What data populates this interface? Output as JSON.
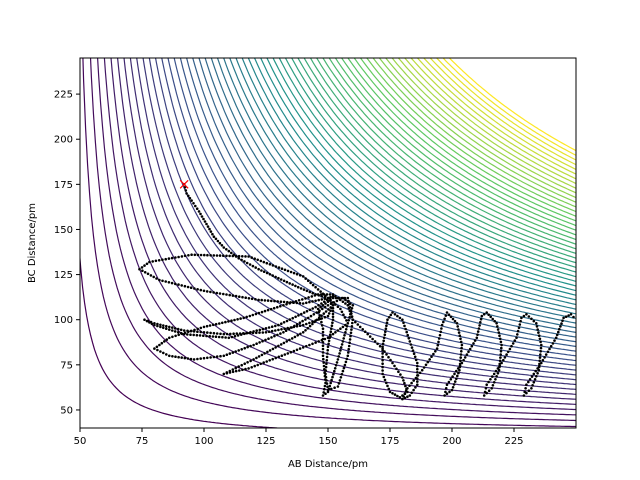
{
  "chart_data": {
    "type": "contour",
    "title": "",
    "xlabel": "AB Distance/pm",
    "ylabel": "BC Distance/pm",
    "xlim": [
      50,
      250
    ],
    "ylim": [
      40,
      245
    ],
    "xticks": [
      50,
      75,
      100,
      125,
      150,
      175,
      200,
      225
    ],
    "yticks": [
      50,
      75,
      100,
      125,
      150,
      175,
      200,
      225
    ],
    "grid": false,
    "colormap": [
      "#440154",
      "#3b528b",
      "#21918c",
      "#5ec962",
      "#fde725"
    ],
    "contour_levels": 60,
    "start_marker": {
      "x": 92,
      "y": 175,
      "symbol": "x",
      "color": "#ff0000"
    },
    "trajectory": {
      "color": "#000000",
      "points": [
        [
          92,
          175
        ],
        [
          93,
          170
        ],
        [
          95,
          166
        ],
        [
          98,
          160
        ],
        [
          101,
          153
        ],
        [
          104,
          146
        ],
        [
          108,
          140
        ],
        [
          114,
          134
        ],
        [
          122,
          128
        ],
        [
          130,
          123
        ],
        [
          138,
          118
        ],
        [
          145,
          114
        ],
        [
          150,
          112
        ],
        [
          152,
          108
        ],
        [
          150,
          102
        ],
        [
          140,
          97
        ],
        [
          125,
          93
        ],
        [
          108,
          92
        ],
        [
          92,
          94
        ],
        [
          80,
          98
        ],
        [
          76,
          100
        ],
        [
          80,
          97
        ],
        [
          92,
          92
        ],
        [
          110,
          90
        ],
        [
          130,
          97
        ],
        [
          145,
          107
        ],
        [
          152,
          113
        ],
        [
          150,
          112
        ],
        [
          140,
          109
        ],
        [
          122,
          111
        ],
        [
          100,
          116
        ],
        [
          82,
          122
        ],
        [
          74,
          128
        ],
        [
          78,
          132
        ],
        [
          95,
          136
        ],
        [
          118,
          135
        ],
        [
          140,
          124
        ],
        [
          150,
          112
        ],
        [
          155,
          106
        ],
        [
          158,
          98
        ],
        [
          150,
          90
        ],
        [
          135,
          82
        ],
        [
          118,
          73
        ],
        [
          108,
          70
        ],
        [
          120,
          78
        ],
        [
          140,
          93
        ],
        [
          152,
          108
        ],
        [
          152,
          100
        ],
        [
          150,
          85
        ],
        [
          149,
          70
        ],
        [
          150,
          61
        ],
        [
          154,
          63
        ],
        [
          158,
          80
        ],
        [
          160,
          100
        ],
        [
          158,
          112
        ],
        [
          152,
          112
        ],
        [
          146,
          106
        ],
        [
          148,
          95
        ],
        [
          148,
          80
        ],
        [
          149,
          65
        ],
        [
          148,
          58
        ],
        [
          150,
          60
        ],
        [
          154,
          78
        ],
        [
          158,
          98
        ],
        [
          160,
          108
        ],
        [
          156,
          112
        ],
        [
          150,
          108
        ],
        [
          142,
          101
        ],
        [
          132,
          93
        ],
        [
          120,
          86
        ],
        [
          108,
          80
        ],
        [
          96,
          78
        ],
        [
          86,
          80
        ],
        [
          80,
          84
        ],
        [
          86,
          90
        ],
        [
          100,
          96
        ],
        [
          116,
          101
        ],
        [
          132,
          108
        ],
        [
          146,
          114
        ],
        [
          152,
          114
        ],
        [
          158,
          108
        ],
        [
          160,
          100
        ],
        [
          166,
          92
        ],
        [
          172,
          84
        ],
        [
          176,
          76
        ],
        [
          180,
          68
        ],
        [
          182,
          60
        ],
        [
          179,
          57
        ],
        [
          175,
          60
        ],
        [
          172,
          70
        ],
        [
          172,
          85
        ],
        [
          174,
          100
        ],
        [
          176,
          104
        ],
        [
          180,
          100
        ],
        [
          183,
          88
        ],
        [
          186,
          76
        ],
        [
          186,
          64
        ],
        [
          183,
          58
        ],
        [
          180,
          56
        ],
        [
          182,
          62
        ],
        [
          188,
          72
        ],
        [
          194,
          84
        ],
        [
          196,
          97
        ],
        [
          198,
          104
        ],
        [
          202,
          98
        ],
        [
          204,
          86
        ],
        [
          203,
          72
        ],
        [
          200,
          61
        ],
        [
          197,
          58
        ],
        [
          198,
          64
        ],
        [
          204,
          76
        ],
        [
          210,
          90
        ],
        [
          212,
          102
        ],
        [
          214,
          104
        ],
        [
          218,
          98
        ],
        [
          220,
          86
        ],
        [
          219,
          72
        ],
        [
          216,
          62
        ],
        [
          213,
          58
        ],
        [
          214,
          64
        ],
        [
          220,
          76
        ],
        [
          226,
          90
        ],
        [
          228,
          101
        ],
        [
          230,
          103
        ],
        [
          234,
          98
        ],
        [
          236,
          86
        ],
        [
          235,
          72
        ],
        [
          232,
          62
        ],
        [
          229,
          58
        ],
        [
          230,
          64
        ],
        [
          236,
          76
        ],
        [
          242,
          90
        ],
        [
          245,
          101
        ],
        [
          248,
          103
        ],
        [
          250,
          100
        ]
      ]
    }
  }
}
